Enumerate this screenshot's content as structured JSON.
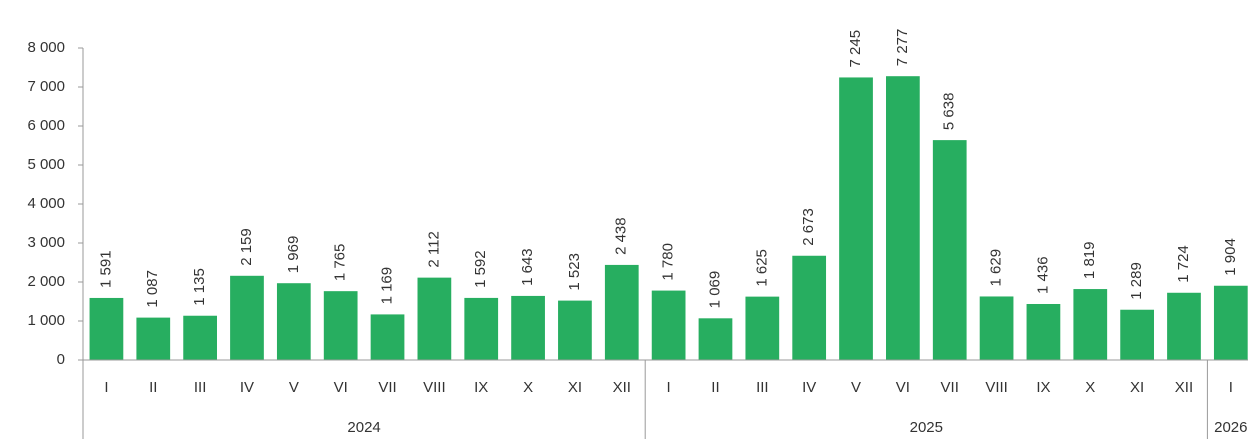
{
  "chart_data": {
    "type": "bar",
    "color": "#27ae60",
    "groups": [
      {
        "name": "2024",
        "categories": [
          "I",
          "II",
          "III",
          "IV",
          "V",
          "VI",
          "VII",
          "VIII",
          "IX",
          "X",
          "XI",
          "XII"
        ]
      },
      {
        "name": "2025",
        "categories": [
          "I",
          "II",
          "III",
          "IV",
          "V",
          "VI",
          "VII",
          "VIII",
          "IX",
          "X",
          "XI",
          "XII"
        ]
      },
      {
        "name": "2026",
        "categories": [
          "I"
        ]
      }
    ],
    "values": [
      1591,
      1087,
      1135,
      2159,
      1969,
      1765,
      1169,
      2112,
      1592,
      1643,
      1523,
      2438,
      1780,
      1069,
      1625,
      2673,
      7245,
      7277,
      5638,
      1629,
      1436,
      1819,
      1289,
      1724,
      1904
    ],
    "value_labels": [
      "1 591",
      "1 087",
      "1 135",
      "2 159",
      "1 969",
      "1 765",
      "1 169",
      "2 112",
      "1 592",
      "1 643",
      "1 523",
      "2 438",
      "1 780",
      "1 069",
      "1 625",
      "2 673",
      "7 245",
      "7 277",
      "5 638",
      "1 629",
      "1 436",
      "1 819",
      "1 289",
      "1 724",
      "1 904"
    ],
    "ylim": [
      0,
      8000
    ],
    "yticks": [
      0,
      {
        "value": 1000,
        "label": "1 000"
      },
      {
        "value": 2000,
        "label": "2 000"
      },
      {
        "value": 3000,
        "label": "3 000"
      },
      {
        "value": 4000,
        "label": "4 000"
      },
      {
        "value": 5000,
        "label": "5 000"
      },
      {
        "value": 6000,
        "label": "6 000"
      },
      {
        "value": 7000,
        "label": "7 000"
      },
      {
        "value": 8000,
        "label": "8 000"
      }
    ],
    "grid": false
  }
}
